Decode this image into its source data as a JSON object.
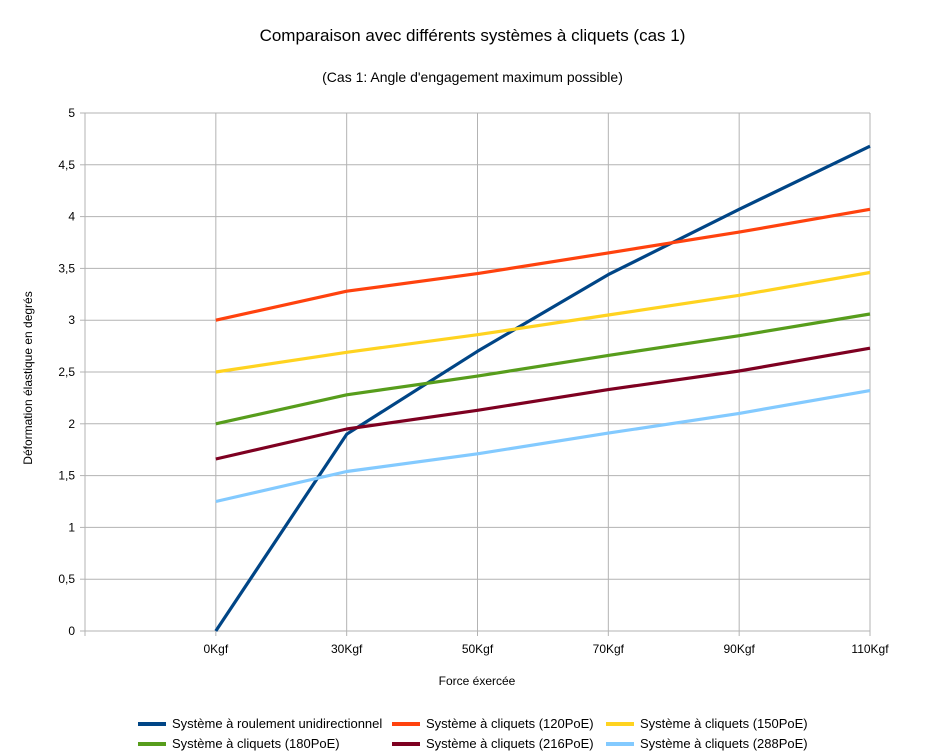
{
  "chart_data": {
    "type": "line",
    "title": "Comparaison avec différents systèmes à cliquets (cas 1)",
    "subtitle": "(Cas 1: Angle d'engagement maximum possible)",
    "xlabel": "Force éxercée",
    "ylabel": "Déformation élastique en degrés",
    "categories": [
      "",
      "0Kgf",
      "30Kgf",
      "50Kgf",
      "70Kgf",
      "90Kgf",
      "110Kgf"
    ],
    "ylim": [
      0,
      5
    ],
    "yticks": [
      "0",
      "0,5",
      "1",
      "1,5",
      "2",
      "2,5",
      "3",
      "3,5",
      "4",
      "4,5",
      "5"
    ],
    "grid": true,
    "legend_position": "bottom",
    "series": [
      {
        "name": "Système à roulement unidirectionnel",
        "color": "#004586",
        "values": [
          null,
          0,
          1.9,
          2.7,
          3.44,
          4.07,
          4.68
        ]
      },
      {
        "name": "Système à cliquets (120PoE)",
        "color": "#ff420e",
        "values": [
          null,
          3.0,
          3.28,
          3.45,
          3.65,
          3.85,
          4.07
        ]
      },
      {
        "name": "Système à cliquets (150PoE)",
        "color": "#ffd320",
        "values": [
          null,
          2.5,
          2.69,
          2.86,
          3.05,
          3.24,
          3.46
        ]
      },
      {
        "name": "Système à cliquets (180PoE)",
        "color": "#579d1c",
        "values": [
          null,
          2.0,
          2.28,
          2.46,
          2.66,
          2.85,
          3.06
        ]
      },
      {
        "name": "Système à cliquets (216PoE)",
        "color": "#7e0021",
        "values": [
          null,
          1.66,
          1.95,
          2.13,
          2.33,
          2.51,
          2.73
        ]
      },
      {
        "name": "Système à cliquets (288PoE)",
        "color": "#83caff",
        "values": [
          null,
          1.25,
          1.54,
          1.71,
          1.91,
          2.1,
          2.32
        ]
      }
    ]
  }
}
